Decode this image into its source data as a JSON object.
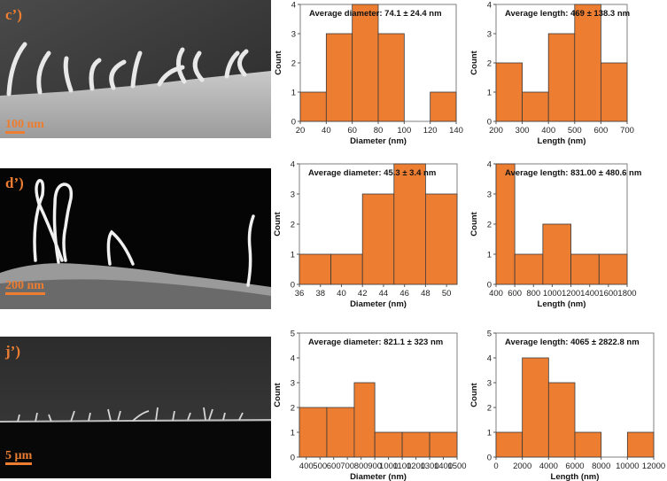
{
  "colors": {
    "bar": "#ED7D31",
    "bar_edge": "#3a3a3a",
    "label_orange": "#ED7D31"
  },
  "rows": [
    {
      "sem": {
        "panel_label": "c’)",
        "scale_bar": "100 nm"
      },
      "diameter_chart": {
        "annotation": "Average diameter: 74.1 ± 24.4 nm",
        "xlabel": "Diameter (nm)",
        "ylabel": "Count",
        "x_ticks": [
          "20",
          "40",
          "60",
          "80",
          "100",
          "120",
          "140"
        ],
        "y_ticks": [
          "0",
          "1",
          "2",
          "3",
          "4"
        ]
      },
      "length_chart": {
        "annotation": "Average length:  469 ± 138.3 nm",
        "xlabel": "Length (nm)",
        "ylabel": "Count",
        "x_ticks": [
          "200",
          "300",
          "400",
          "500",
          "600",
          "700"
        ],
        "y_ticks": [
          "0",
          "1",
          "2",
          "3",
          "4"
        ]
      }
    },
    {
      "sem": {
        "panel_label": "d’)",
        "scale_bar": "200 nm"
      },
      "diameter_chart": {
        "annotation": "Average diameter: 45.3 ± 3.4 nm",
        "xlabel": "Diameter (nm)",
        "ylabel": "Count",
        "x_ticks": [
          "36",
          "38",
          "40",
          "42",
          "44",
          "46",
          "48",
          "50"
        ],
        "y_ticks": [
          "0",
          "1",
          "2",
          "3",
          "4"
        ]
      },
      "length_chart": {
        "annotation": "Average length: 831.00 ± 480.6 nm",
        "xlabel": "Length (nm)",
        "ylabel": "Count",
        "x_ticks": [
          "400",
          "600",
          "800",
          "1000",
          "1200",
          "1400",
          "1600",
          "1800"
        ],
        "y_ticks": [
          "0",
          "1",
          "2",
          "3",
          "4"
        ]
      }
    },
    {
      "sem": {
        "panel_label": "j’)",
        "scale_bar": "5 µm"
      },
      "diameter_chart": {
        "annotation": "Average diameter: 821.1 ± 323 nm",
        "xlabel": "Diameter (nm)",
        "ylabel": "Count",
        "x_ticks": [
          "400",
          "500",
          "600",
          "700",
          "800",
          "900",
          "1000",
          "1100",
          "1200",
          "1300",
          "1400",
          "1500"
        ],
        "y_ticks": [
          "0",
          "1",
          "2",
          "3",
          "4",
          "5"
        ]
      },
      "length_chart": {
        "annotation": "Average length: 4065 ± 2822.8 nm",
        "xlabel": "Length (nm)",
        "ylabel": "Count",
        "x_ticks": [
          "0",
          "2000",
          "4000",
          "6000",
          "8000",
          "10000",
          "12000"
        ],
        "y_ticks": [
          "0",
          "1",
          "2",
          "3",
          "4",
          "5"
        ]
      }
    }
  ],
  "chart_data": [
    {
      "type": "bar",
      "xlabel": "Diameter (nm)",
      "ylabel": "Count",
      "xlim": [
        20,
        140
      ],
      "ylim": [
        0,
        4
      ],
      "bins": [
        [
          20,
          40
        ],
        [
          40,
          60
        ],
        [
          60,
          80
        ],
        [
          80,
          100
        ],
        [
          100,
          120
        ],
        [
          120,
          140
        ]
      ],
      "values": [
        1,
        3,
        4,
        3,
        0,
        1
      ]
    },
    {
      "type": "bar",
      "xlabel": "Length (nm)",
      "ylabel": "Count",
      "xlim": [
        200,
        700
      ],
      "ylim": [
        0,
        4
      ],
      "bins": [
        [
          200,
          300
        ],
        [
          300,
          400
        ],
        [
          400,
          500
        ],
        [
          500,
          600
        ],
        [
          600,
          700
        ]
      ],
      "values": [
        2,
        1,
        3,
        4,
        2
      ]
    },
    {
      "type": "bar",
      "xlabel": "Diameter (nm)",
      "ylabel": "Count",
      "xlim": [
        36,
        51
      ],
      "ylim": [
        0,
        4
      ],
      "bins": [
        [
          36,
          39
        ],
        [
          39,
          42
        ],
        [
          42,
          45
        ],
        [
          45,
          48
        ],
        [
          48,
          51
        ]
      ],
      "values": [
        1,
        1,
        3,
        4,
        3
      ]
    },
    {
      "type": "bar",
      "xlabel": "Length (nm)",
      "ylabel": "Count",
      "xlim": [
        400,
        1800
      ],
      "ylim": [
        0,
        4
      ],
      "bins": [
        [
          400,
          600
        ],
        [
          600,
          900
        ],
        [
          900,
          1200
        ],
        [
          1200,
          1500
        ],
        [
          1500,
          1800
        ]
      ],
      "values": [
        4,
        1,
        2,
        1,
        1
      ]
    },
    {
      "type": "bar",
      "xlabel": "Diameter (nm)",
      "ylabel": "Count",
      "xlim": [
        350,
        1500
      ],
      "ylim": [
        0,
        5
      ],
      "bins": [
        [
          350,
          550
        ],
        [
          550,
          750
        ],
        [
          750,
          900
        ],
        [
          900,
          1100
        ],
        [
          1100,
          1300
        ],
        [
          1300,
          1500
        ]
      ],
      "values": [
        2,
        2,
        3,
        1,
        1,
        1
      ]
    },
    {
      "type": "bar",
      "xlabel": "Length (nm)",
      "ylabel": "Count",
      "xlim": [
        0,
        12000
      ],
      "ylim": [
        0,
        5
      ],
      "bins": [
        [
          0,
          2000
        ],
        [
          2000,
          4000
        ],
        [
          4000,
          6000
        ],
        [
          6000,
          8000
        ],
        [
          8000,
          10000
        ],
        [
          10000,
          12000
        ]
      ],
      "values": [
        1,
        4,
        3,
        1,
        0,
        1
      ]
    }
  ]
}
